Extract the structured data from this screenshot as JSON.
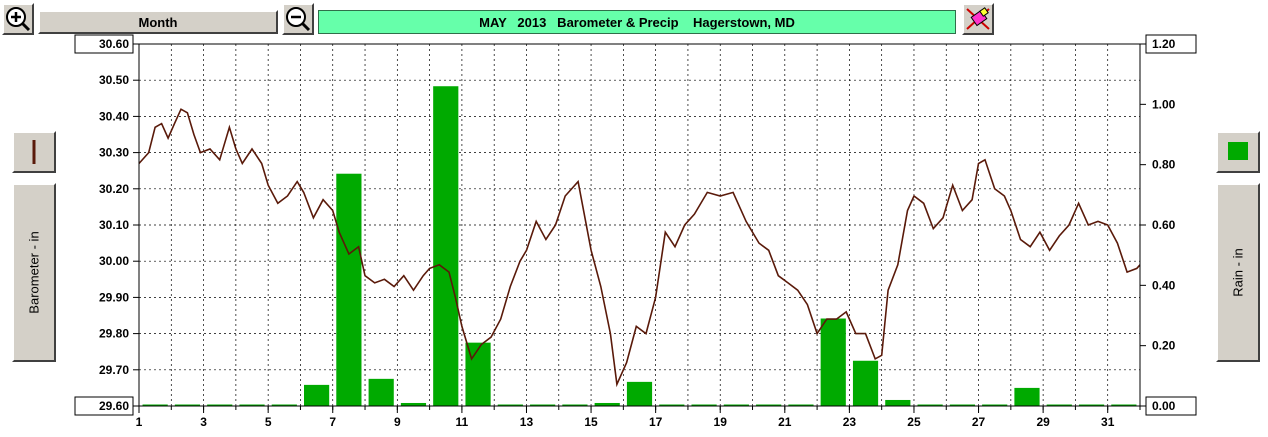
{
  "toolbar": {
    "zoom_in_icon": "zoom-in-icon",
    "period_label": "Month",
    "zoom_out_icon": "zoom-out-icon",
    "title": "MAY   2013   Barometer & Precip    Hagerstown, MD",
    "print_icon": "paint-eraser-icon"
  },
  "left_panel": {
    "legend_icon": "barometer-line-legend-icon",
    "legend_color": "#5a1a0a",
    "axis_title": "Barometer - in"
  },
  "right_panel": {
    "legend_icon": "rain-bar-legend-icon",
    "legend_color": "#00aa00",
    "axis_title": "Rain - in"
  },
  "chart_data": {
    "type": "bar+line",
    "x_ticks": [
      "1",
      "3",
      "5",
      "7",
      "9",
      "11",
      "13",
      "15",
      "17",
      "19",
      "21",
      "23",
      "25",
      "27",
      "29",
      "31"
    ],
    "xlim": [
      1,
      32
    ],
    "y_left": {
      "label": "Barometer - in",
      "lim": [
        29.6,
        30.6
      ],
      "ticks": [
        "30.60",
        "30.50",
        "30.40",
        "30.30",
        "30.20",
        "30.10",
        "30.00",
        "29.90",
        "29.80",
        "29.70",
        "29.60"
      ]
    },
    "y_right": {
      "label": "Rain - in",
      "lim": [
        0,
        1.2
      ],
      "ticks": [
        "1.20",
        "1.00",
        "0.80",
        "0.60",
        "0.40",
        "0.20",
        "0.00"
      ]
    },
    "grid": true,
    "rain": {
      "name": "Rain - in",
      "color": "#00aa00",
      "days": [
        1,
        2,
        3,
        4,
        5,
        6,
        7,
        8,
        9,
        10,
        11,
        12,
        13,
        14,
        15,
        16,
        17,
        18,
        19,
        20,
        21,
        22,
        23,
        24,
        25,
        26,
        27,
        28,
        29,
        30,
        31
      ],
      "values": [
        0,
        0,
        0,
        0,
        0,
        0.07,
        0.77,
        0.09,
        0.01,
        1.06,
        0.21,
        0,
        0,
        0,
        0.01,
        0.08,
        0,
        0,
        0,
        0,
        0,
        0.29,
        0.15,
        0.02,
        0,
        0,
        0,
        0.06,
        0,
        0,
        0
      ]
    },
    "barometer": {
      "name": "Barometer - in",
      "color": "#5a1a0a",
      "x": [
        1,
        1.3,
        1.5,
        1.7,
        1.9,
        2.1,
        2.3,
        2.5,
        2.7,
        2.9,
        3.2,
        3.5,
        3.8,
        4.0,
        4.2,
        4.5,
        4.8,
        5.0,
        5.3,
        5.6,
        5.9,
        6.1,
        6.4,
        6.7,
        7.0,
        7.2,
        7.5,
        7.8,
        8.0,
        8.3,
        8.6,
        8.9,
        9.2,
        9.5,
        9.8,
        10.0,
        10.3,
        10.6,
        10.8,
        11.0,
        11.3,
        11.6,
        11.9,
        12.2,
        12.5,
        12.8,
        13.0,
        13.3,
        13.6,
        13.9,
        14.2,
        14.6,
        15.0,
        15.3,
        15.6,
        15.8,
        16.1,
        16.4,
        16.7,
        17.0,
        17.3,
        17.6,
        17.9,
        18.2,
        18.6,
        19.0,
        19.4,
        19.8,
        20.2,
        20.5,
        20.8,
        21.1,
        21.4,
        21.7,
        22.0,
        22.3,
        22.6,
        22.9,
        23.2,
        23.5,
        23.8,
        24.0,
        24.2,
        24.5,
        24.8,
        25.0,
        25.3,
        25.6,
        25.9,
        26.2,
        26.5,
        26.8,
        27.0,
        27.2,
        27.5,
        27.8,
        28.0,
        28.3,
        28.6,
        28.9,
        29.2,
        29.5,
        29.8,
        30.1,
        30.4,
        30.7,
        31.0,
        31.3,
        31.6,
        31.9,
        32.0
      ],
      "y": [
        30.27,
        30.3,
        30.37,
        30.38,
        30.34,
        30.38,
        30.42,
        30.41,
        30.35,
        30.3,
        30.31,
        30.28,
        30.37,
        30.31,
        30.27,
        30.31,
        30.27,
        30.21,
        30.16,
        30.18,
        30.22,
        30.19,
        30.12,
        30.17,
        30.14,
        30.08,
        30.02,
        30.04,
        29.96,
        29.94,
        29.95,
        29.93,
        29.96,
        29.92,
        29.96,
        29.98,
        29.99,
        29.97,
        29.9,
        29.82,
        29.73,
        29.77,
        29.79,
        29.84,
        29.93,
        30.0,
        30.03,
        30.11,
        30.06,
        30.1,
        30.18,
        30.22,
        30.03,
        29.93,
        29.8,
        29.66,
        29.72,
        29.82,
        29.8,
        29.9,
        30.08,
        30.04,
        30.1,
        30.13,
        30.19,
        30.18,
        30.19,
        30.11,
        30.05,
        30.03,
        29.96,
        29.94,
        29.92,
        29.88,
        29.8,
        29.84,
        29.84,
        29.86,
        29.8,
        29.8,
        29.73,
        29.74,
        29.92,
        29.99,
        30.14,
        30.18,
        30.16,
        30.09,
        30.12,
        30.21,
        30.14,
        30.17,
        30.27,
        30.28,
        30.2,
        30.18,
        30.14,
        30.06,
        30.04,
        30.08,
        30.03,
        30.07,
        30.1,
        30.16,
        30.1,
        30.11,
        30.1,
        30.05,
        29.97,
        29.98,
        29.99
      ]
    }
  }
}
